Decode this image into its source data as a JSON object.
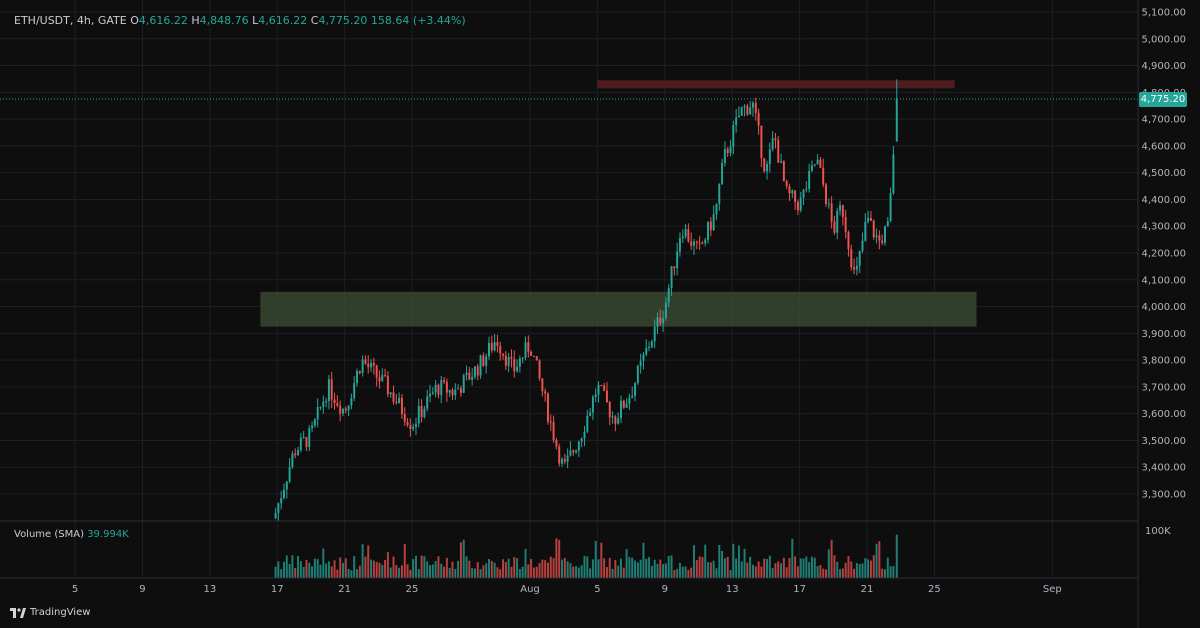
{
  "header": {
    "symbol": "ETH/USDT, 4h, GATE",
    "open_label": "O",
    "open": "4,616.22",
    "high_label": "H",
    "high": "4,848.76",
    "low_label": "L",
    "low": "4,616.22",
    "close_label": "C",
    "close": "4,775.20",
    "change": "158.64 (+3.44%)"
  },
  "volume_pane": {
    "label": "Volume (SMA)",
    "value": "39.994K",
    "axis_label": "100K"
  },
  "last_price_tag": "4,775.20",
  "branding": "TradingView",
  "colors": {
    "up": "#26a69a",
    "down": "#ef5350",
    "background": "#0e0e0e",
    "resistance_zone": "#5a1f22",
    "support_zone": "#3c4b34"
  },
  "chart_data": {
    "type": "candlestick",
    "y_ticks": [
      3300,
      3400,
      3500,
      3600,
      3700,
      3800,
      3900,
      4000,
      4100,
      4200,
      4300,
      4400,
      4500,
      4600,
      4700,
      4800,
      4900,
      5000,
      5100
    ],
    "y_tick_labels": [
      "3,300.00",
      "3,400.00",
      "3,500.00",
      "3,600.00",
      "3,700.00",
      "3,800.00",
      "3,900.00",
      "4,000.00",
      "4,100.00",
      "4,200.00",
      "4,300.00",
      "4,400.00",
      "4,500.00",
      "4,600.00",
      "4,700.00",
      "4,800.00",
      "4,900.00",
      "5,000.00",
      "5,100.00"
    ],
    "ylim": [
      3180,
      5110
    ],
    "x_tick_labels": [
      "5",
      "9",
      "13",
      "17",
      "21",
      "25",
      "Aug",
      "5",
      "9",
      "13",
      "17",
      "21",
      "25",
      "Sep"
    ],
    "x_tick_days": [
      -26,
      -22,
      -18,
      -14,
      -10,
      -6,
      1,
      5,
      9,
      13,
      17,
      21,
      25,
      32
    ],
    "x_tick_note": "days relative to Aug 1",
    "anchors": [
      {
        "day": -14.1,
        "price": 3230
      },
      {
        "day": -13.0,
        "price": 3460
      },
      {
        "day": -12.0,
        "price": 3520
      },
      {
        "day": -11.0,
        "price": 3700
      },
      {
        "day": -10.0,
        "price": 3610
      },
      {
        "day": -9.0,
        "price": 3800
      },
      {
        "day": -7.5,
        "price": 3700
      },
      {
        "day": -6.0,
        "price": 3560
      },
      {
        "day": -4.5,
        "price": 3700
      },
      {
        "day": -3.5,
        "price": 3680
      },
      {
        "day": -2.0,
        "price": 3780
      },
      {
        "day": -1.0,
        "price": 3880
      },
      {
        "day": 0.0,
        "price": 3760
      },
      {
        "day": 1.0,
        "price": 3860
      },
      {
        "day": 2.5,
        "price": 3500
      },
      {
        "day": 3.0,
        "price": 3390
      },
      {
        "day": 4.0,
        "price": 3520
      },
      {
        "day": 5.0,
        "price": 3700
      },
      {
        "day": 6.0,
        "price": 3580
      },
      {
        "day": 7.0,
        "price": 3680
      },
      {
        "day": 8.0,
        "price": 3850
      },
      {
        "day": 9.0,
        "price": 4000
      },
      {
        "day": 10.0,
        "price": 4300
      },
      {
        "day": 11.0,
        "price": 4200
      },
      {
        "day": 12.0,
        "price": 4350
      },
      {
        "day": 12.5,
        "price": 4550
      },
      {
        "day": 13.5,
        "price": 4730
      },
      {
        "day": 14.2,
        "price": 4760
      },
      {
        "day": 15.0,
        "price": 4500
      },
      {
        "day": 15.5,
        "price": 4640
      },
      {
        "day": 16.2,
        "price": 4420
      },
      {
        "day": 17.0,
        "price": 4380
      },
      {
        "day": 18.0,
        "price": 4550
      },
      {
        "day": 18.5,
        "price": 4430
      },
      {
        "day": 19.0,
        "price": 4280
      },
      {
        "day": 19.5,
        "price": 4380
      },
      {
        "day": 20.3,
        "price": 4100
      },
      {
        "day": 21.0,
        "price": 4330
      },
      {
        "day": 21.7,
        "price": 4240
      },
      {
        "day": 22.3,
        "price": 4300
      },
      {
        "day": 22.6,
        "price": 4616
      }
    ],
    "last_candle": {
      "open": 4616.22,
      "high": 4848.76,
      "low": 4616.22,
      "close": 4775.2
    },
    "zones": [
      {
        "name": "resistance",
        "day_from": 5.0,
        "day_to": 26.2,
        "price_from": 4815,
        "price_to": 4845
      },
      {
        "name": "support",
        "day_from": -15.0,
        "day_to": 27.5,
        "price_from": 3925,
        "price_to": 4055
      }
    ],
    "volume_ylim": [
      0,
      100000
    ]
  }
}
